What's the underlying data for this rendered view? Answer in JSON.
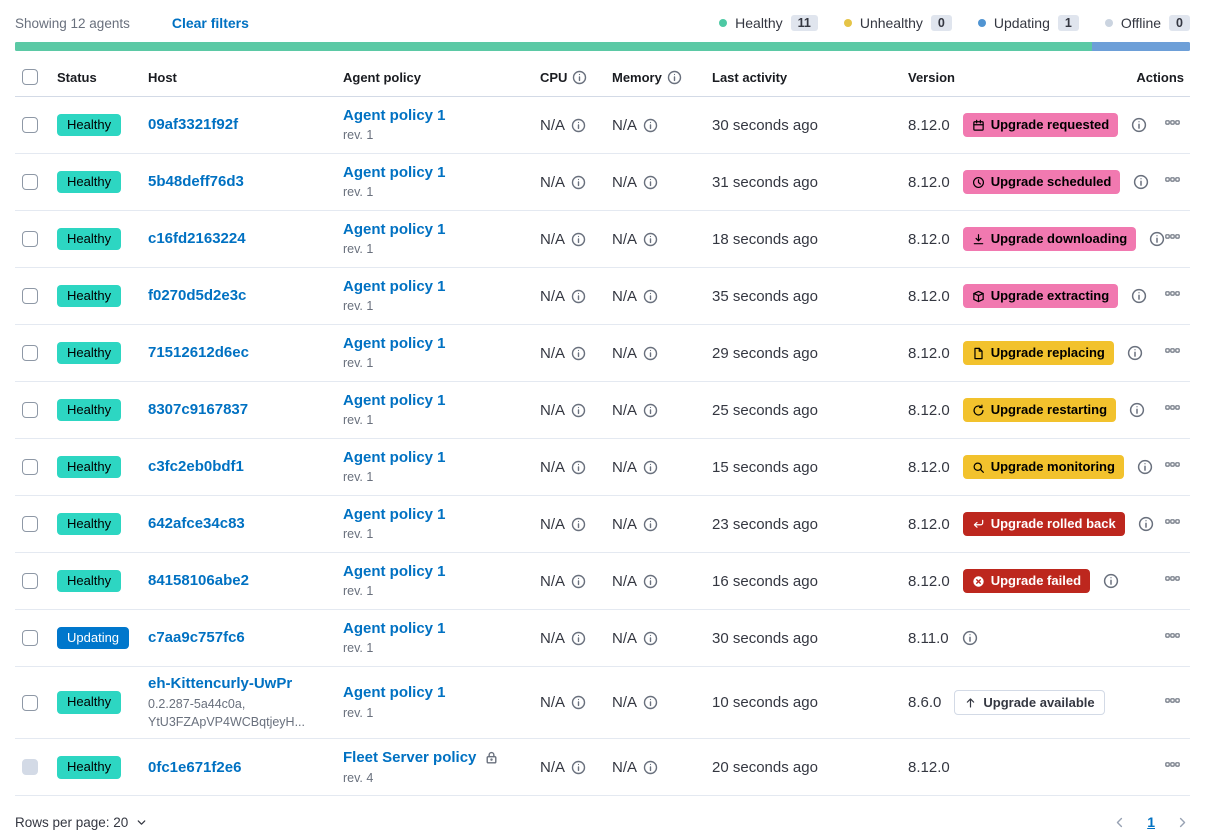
{
  "toolbar": {
    "showing_text": "Showing 12 agents",
    "clear_filters_label": "Clear filters",
    "legend": [
      {
        "label": "Healthy",
        "count": "11",
        "color": "#4DC9A4"
      },
      {
        "label": "Unhealthy",
        "count": "0",
        "color": "#E5C447"
      },
      {
        "label": "Updating",
        "count": "1",
        "color": "#5094D2"
      },
      {
        "label": "Offline",
        "count": "0",
        "color": "#CBD4E0"
      }
    ]
  },
  "status_bar": {
    "segments": [
      {
        "status": "healthy",
        "color": "#5BC9A5",
        "fraction": 0.9167
      },
      {
        "status": "updating",
        "color": "#6D9FD8",
        "fraction": 0.0833
      }
    ]
  },
  "colors": {
    "link": "#0071C2",
    "status_badges": {
      "Healthy": {
        "bg": "#2DD6C2",
        "fg": "#000000"
      },
      "Updating": {
        "bg": "#0077CC",
        "fg": "#FFFFFF"
      }
    },
    "upgrade_tones": {
      "pink": {
        "bg": "#F179B0",
        "fg": "#000000"
      },
      "warning": {
        "bg": "#F2C22D",
        "fg": "#000000"
      },
      "danger": {
        "bg": "#BD271E",
        "fg": "#FFFFFF"
      },
      "hollow": {
        "bg": "#FFFFFF",
        "fg": "#343741",
        "border": "#D3DAE6"
      }
    }
  },
  "table": {
    "columns": [
      {
        "type": "checkbox"
      },
      {
        "label": "Status"
      },
      {
        "label": "Host"
      },
      {
        "label": "Agent policy"
      },
      {
        "label": "CPU",
        "info": true
      },
      {
        "label": "Memory",
        "info": true
      },
      {
        "label": "Last activity"
      },
      {
        "label": "Version"
      },
      {
        "label": "Actions",
        "align": "right"
      }
    ],
    "rows": [
      {
        "status": "Healthy",
        "host": "09af3321f92f",
        "host_sub": [],
        "policy": "Agent policy 1",
        "policy_rev": "rev. 1",
        "policy_locked": false,
        "cpu": "N/A",
        "memory": "N/A",
        "last_activity": "30 seconds ago",
        "version": "8.12.0",
        "upgrade": {
          "label": "Upgrade requested",
          "tone": "pink",
          "icon": "calendar-icon"
        },
        "badge_info": true,
        "version_info": false,
        "checkbox_disabled": false
      },
      {
        "status": "Healthy",
        "host": "5b48deff76d3",
        "host_sub": [],
        "policy": "Agent policy 1",
        "policy_rev": "rev. 1",
        "policy_locked": false,
        "cpu": "N/A",
        "memory": "N/A",
        "last_activity": "31 seconds ago",
        "version": "8.12.0",
        "upgrade": {
          "label": "Upgrade scheduled",
          "tone": "pink",
          "icon": "clock-icon"
        },
        "badge_info": true,
        "version_info": false,
        "checkbox_disabled": false
      },
      {
        "status": "Healthy",
        "host": "c16fd2163224",
        "host_sub": [],
        "policy": "Agent policy 1",
        "policy_rev": "rev. 1",
        "policy_locked": false,
        "cpu": "N/A",
        "memory": "N/A",
        "last_activity": "18 seconds ago",
        "version": "8.12.0",
        "upgrade": {
          "label": "Upgrade downloading",
          "tone": "pink",
          "icon": "download-icon"
        },
        "badge_info": true,
        "version_info": false,
        "checkbox_disabled": false
      },
      {
        "status": "Healthy",
        "host": "f0270d5d2e3c",
        "host_sub": [],
        "policy": "Agent policy 1",
        "policy_rev": "rev. 1",
        "policy_locked": false,
        "cpu": "N/A",
        "memory": "N/A",
        "last_activity": "35 seconds ago",
        "version": "8.12.0",
        "upgrade": {
          "label": "Upgrade extracting",
          "tone": "pink",
          "icon": "package-icon"
        },
        "badge_info": true,
        "version_info": false,
        "checkbox_disabled": false
      },
      {
        "status": "Healthy",
        "host": "71512612d6ec",
        "host_sub": [],
        "policy": "Agent policy 1",
        "policy_rev": "rev. 1",
        "policy_locked": false,
        "cpu": "N/A",
        "memory": "N/A",
        "last_activity": "29 seconds ago",
        "version": "8.12.0",
        "upgrade": {
          "label": "Upgrade replacing",
          "tone": "warning",
          "icon": "document-icon"
        },
        "badge_info": true,
        "version_info": false,
        "checkbox_disabled": false
      },
      {
        "status": "Healthy",
        "host": "8307c9167837",
        "host_sub": [],
        "policy": "Agent policy 1",
        "policy_rev": "rev. 1",
        "policy_locked": false,
        "cpu": "N/A",
        "memory": "N/A",
        "last_activity": "25 seconds ago",
        "version": "8.12.0",
        "upgrade": {
          "label": "Upgrade restarting",
          "tone": "warning",
          "icon": "refresh-icon"
        },
        "badge_info": true,
        "version_info": false,
        "checkbox_disabled": false
      },
      {
        "status": "Healthy",
        "host": "c3fc2eb0bdf1",
        "host_sub": [],
        "policy": "Agent policy 1",
        "policy_rev": "rev. 1",
        "policy_locked": false,
        "cpu": "N/A",
        "memory": "N/A",
        "last_activity": "15 seconds ago",
        "version": "8.12.0",
        "upgrade": {
          "label": "Upgrade monitoring",
          "tone": "warning",
          "icon": "inspect-icon"
        },
        "badge_info": true,
        "version_info": false,
        "checkbox_disabled": false
      },
      {
        "status": "Healthy",
        "host": "642afce34c83",
        "host_sub": [],
        "policy": "Agent policy 1",
        "policy_rev": "rev. 1",
        "policy_locked": false,
        "cpu": "N/A",
        "memory": "N/A",
        "last_activity": "23 seconds ago",
        "version": "8.12.0",
        "upgrade": {
          "label": "Upgrade rolled back",
          "tone": "danger",
          "icon": "return-icon"
        },
        "badge_info": true,
        "version_info": false,
        "checkbox_disabled": false
      },
      {
        "status": "Healthy",
        "host": "84158106abe2",
        "host_sub": [],
        "policy": "Agent policy 1",
        "policy_rev": "rev. 1",
        "policy_locked": false,
        "cpu": "N/A",
        "memory": "N/A",
        "last_activity": "16 seconds ago",
        "version": "8.12.0",
        "upgrade": {
          "label": "Upgrade failed",
          "tone": "danger",
          "icon": "error-icon"
        },
        "badge_info": true,
        "version_info": false,
        "checkbox_disabled": false
      },
      {
        "status": "Updating",
        "host": "c7aa9c757fc6",
        "host_sub": [],
        "policy": "Agent policy 1",
        "policy_rev": "rev. 1",
        "policy_locked": false,
        "cpu": "N/A",
        "memory": "N/A",
        "last_activity": "30 seconds ago",
        "version": "8.11.0",
        "upgrade": null,
        "badge_info": false,
        "version_info": true,
        "checkbox_disabled": false
      },
      {
        "status": "Healthy",
        "host": "eh-Kittencurly-UwPr",
        "host_sub": [
          "0.2.287-5a44c0a,",
          "YtU3FZApVP4WCBqtjeyH..."
        ],
        "policy": "Agent policy 1",
        "policy_rev": "rev. 1",
        "policy_locked": false,
        "cpu": "N/A",
        "memory": "N/A",
        "last_activity": "10 seconds ago",
        "version": "8.6.0",
        "upgrade": {
          "label": "Upgrade available",
          "tone": "hollow",
          "icon": "arrow-up-icon"
        },
        "badge_info": false,
        "version_info": false,
        "checkbox_disabled": false
      },
      {
        "status": "Healthy",
        "host": "0fc1e671f2e6",
        "host_sub": [],
        "policy": "Fleet Server policy",
        "policy_rev": "rev. 4",
        "policy_locked": true,
        "cpu": "N/A",
        "memory": "N/A",
        "last_activity": "20 seconds ago",
        "version": "8.12.0",
        "upgrade": null,
        "badge_info": false,
        "version_info": false,
        "checkbox_disabled": true
      }
    ]
  },
  "footer": {
    "rows_per_page_label": "Rows per page: 20",
    "page": "1"
  }
}
